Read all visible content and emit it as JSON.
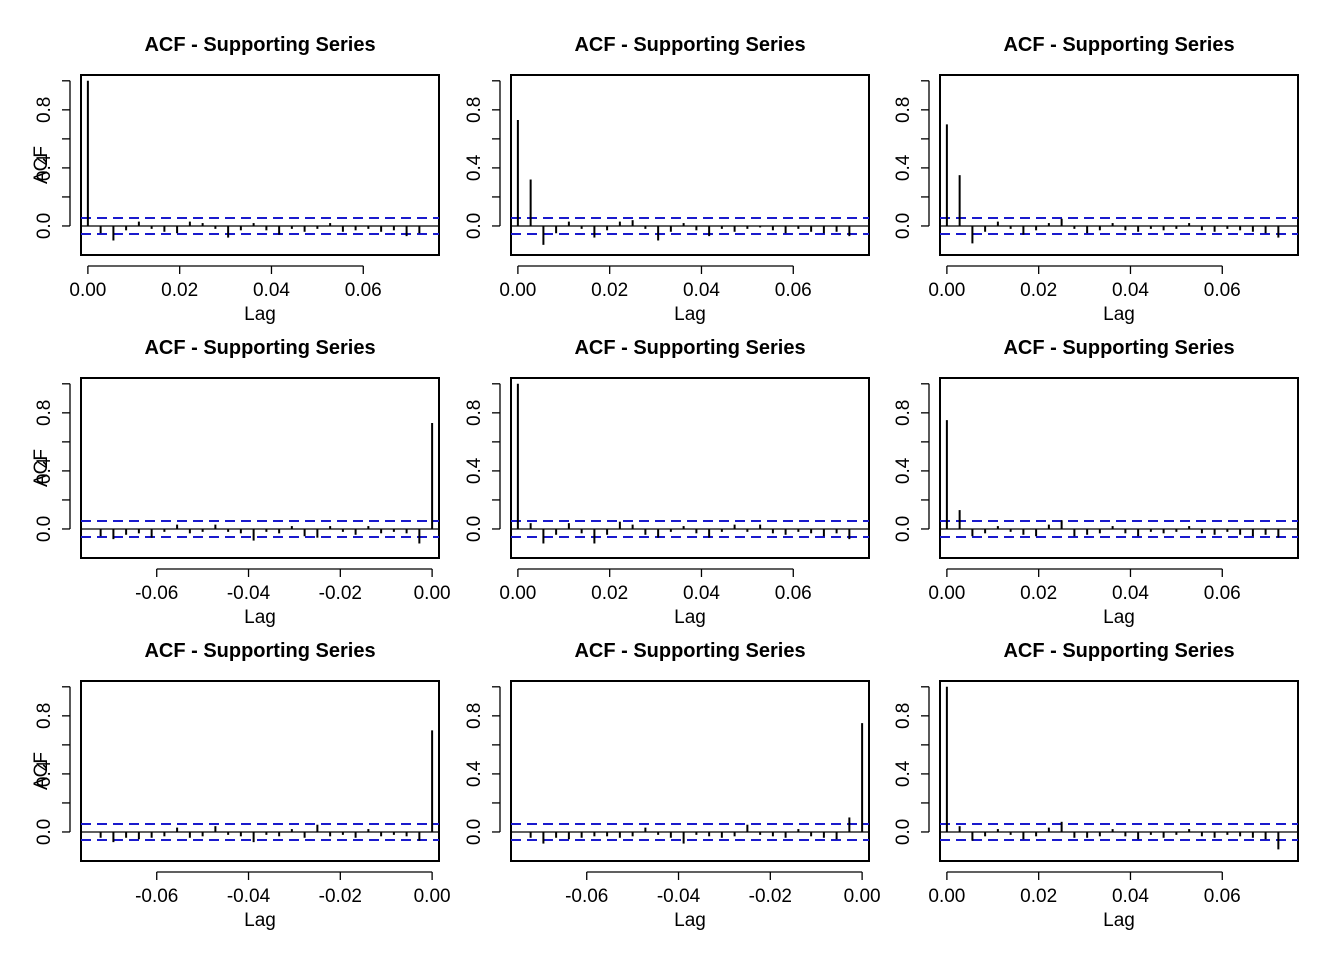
{
  "figure": {
    "background": "#ffffff",
    "ci_color": "#1a1acd"
  },
  "chart_data": [
    {
      "type": "bar",
      "title": "ACF - Supporting Series",
      "xlabel": "Lag",
      "ylabel": "ACF",
      "xlim": [
        -0.0015,
        0.0765
      ],
      "ylim": [
        -0.2,
        1.04
      ],
      "xticks": [
        0.0,
        0.02,
        0.04,
        0.06
      ],
      "xtick_labels": [
        "0.00",
        "0.02",
        "0.04",
        "0.06"
      ],
      "yticks": [
        0.0,
        0.4,
        0.8
      ],
      "ytick_labels": [
        "0.0",
        "0.4",
        "0.8"
      ],
      "ci": [
        0.055,
        -0.055
      ],
      "x": [
        0.0,
        0.00278,
        0.00556,
        0.00833,
        0.01111,
        0.01389,
        0.01667,
        0.01944,
        0.02222,
        0.025,
        0.02778,
        0.03056,
        0.03333,
        0.03611,
        0.03889,
        0.04167,
        0.04444,
        0.04722,
        0.05,
        0.05278,
        0.05556,
        0.05833,
        0.06111,
        0.06389,
        0.06667,
        0.06944,
        0.07222
      ],
      "values": [
        1.0,
        -0.05,
        -0.1,
        -0.03,
        0.03,
        -0.02,
        -0.04,
        -0.05,
        0.03,
        0.02,
        -0.02,
        -0.08,
        -0.03,
        0.02,
        -0.03,
        -0.06,
        -0.02,
        -0.04,
        -0.02,
        0.02,
        -0.04,
        -0.03,
        -0.02,
        -0.04,
        -0.03,
        -0.07,
        -0.05
      ],
      "grid": false
    },
    {
      "type": "bar",
      "title": "ACF - Supporting Series",
      "xlabel": "Lag",
      "ylabel": "",
      "xlim": [
        -0.0015,
        0.0765
      ],
      "ylim": [
        -0.2,
        1.04
      ],
      "xticks": [
        0.0,
        0.02,
        0.04,
        0.06
      ],
      "xtick_labels": [
        "0.00",
        "0.02",
        "0.04",
        "0.06"
      ],
      "yticks": [
        0.0,
        0.4,
        0.8
      ],
      "ytick_labels": [
        "0.0",
        "0.4",
        "0.8"
      ],
      "ci": [
        0.055,
        -0.055
      ],
      "x": [
        0.0,
        0.00278,
        0.00556,
        0.00833,
        0.01111,
        0.01389,
        0.01667,
        0.01944,
        0.02222,
        0.025,
        0.02778,
        0.03056,
        0.03333,
        0.03611,
        0.03889,
        0.04167,
        0.04444,
        0.04722,
        0.05,
        0.05278,
        0.05556,
        0.05833,
        0.06111,
        0.06389,
        0.06667,
        0.06944,
        0.07222
      ],
      "values": [
        0.73,
        0.32,
        -0.13,
        -0.05,
        0.03,
        -0.02,
        -0.08,
        -0.03,
        0.03,
        0.04,
        -0.02,
        -0.1,
        -0.04,
        0.02,
        -0.03,
        -0.07,
        -0.02,
        -0.04,
        -0.02,
        -0.01,
        -0.03,
        -0.05,
        -0.02,
        -0.04,
        -0.05,
        -0.04,
        -0.07
      ],
      "grid": false
    },
    {
      "type": "bar",
      "title": "ACF - Supporting Series",
      "xlabel": "Lag",
      "ylabel": "",
      "xlim": [
        -0.0015,
        0.0765
      ],
      "ylim": [
        -0.2,
        1.04
      ],
      "xticks": [
        0.0,
        0.02,
        0.04,
        0.06
      ],
      "xtick_labels": [
        "0.00",
        "0.02",
        "0.04",
        "0.06"
      ],
      "yticks": [
        0.0,
        0.4,
        0.8
      ],
      "ytick_labels": [
        "0.0",
        "0.4",
        "0.8"
      ],
      "ci": [
        0.055,
        -0.055
      ],
      "x": [
        0.0,
        0.00278,
        0.00556,
        0.00833,
        0.01111,
        0.01389,
        0.01667,
        0.01944,
        0.02222,
        0.025,
        0.02778,
        0.03056,
        0.03333,
        0.03611,
        0.03889,
        0.04167,
        0.04444,
        0.04722,
        0.05,
        0.05278,
        0.05556,
        0.05833,
        0.06111,
        0.06389,
        0.06667,
        0.06944,
        0.07222
      ],
      "values": [
        0.7,
        0.35,
        -0.12,
        -0.04,
        0.03,
        -0.02,
        -0.06,
        -0.03,
        0.02,
        0.05,
        -0.02,
        -0.05,
        -0.03,
        0.02,
        -0.03,
        -0.04,
        -0.02,
        -0.03,
        -0.02,
        0.02,
        -0.03,
        -0.04,
        -0.02,
        -0.03,
        -0.04,
        -0.05,
        -0.08
      ],
      "grid": false
    },
    {
      "type": "bar",
      "title": "ACF - Supporting Series",
      "xlabel": "Lag",
      "ylabel": "ACF",
      "xlim": [
        -0.0765,
        0.0015
      ],
      "ylim": [
        -0.2,
        1.04
      ],
      "xticks": [
        -0.06,
        -0.04,
        -0.02,
        0.0
      ],
      "xtick_labels": [
        "-0.06",
        "-0.04",
        "-0.02",
        "0.00"
      ],
      "yticks": [
        0.0,
        0.4,
        0.8
      ],
      "ytick_labels": [
        "0.0",
        "0.4",
        "0.8"
      ],
      "ci": [
        0.055,
        -0.055
      ],
      "x": [
        -0.07222,
        -0.06944,
        -0.06667,
        -0.06389,
        -0.06111,
        -0.05833,
        -0.05556,
        -0.05278,
        -0.05,
        -0.04722,
        -0.04444,
        -0.04167,
        -0.03889,
        -0.03611,
        -0.03333,
        -0.03056,
        -0.02778,
        -0.025,
        -0.02222,
        -0.01944,
        -0.01667,
        -0.01389,
        -0.01111,
        -0.00833,
        -0.00556,
        -0.00278,
        0.0
      ],
      "values": [
        -0.05,
        -0.07,
        -0.04,
        -0.03,
        -0.06,
        -0.02,
        0.03,
        -0.03,
        -0.02,
        0.03,
        -0.02,
        -0.03,
        -0.08,
        -0.02,
        -0.03,
        0.02,
        -0.05,
        -0.06,
        0.02,
        -0.02,
        -0.04,
        0.02,
        -0.03,
        -0.02,
        -0.03,
        -0.1,
        0.73
      ],
      "grid": false
    },
    {
      "type": "bar",
      "title": "ACF - Supporting Series",
      "xlabel": "Lag",
      "ylabel": "",
      "xlim": [
        -0.0015,
        0.0765
      ],
      "ylim": [
        -0.2,
        1.04
      ],
      "xticks": [
        0.0,
        0.02,
        0.04,
        0.06
      ],
      "xtick_labels": [
        "0.00",
        "0.02",
        "0.04",
        "0.06"
      ],
      "yticks": [
        0.0,
        0.4,
        0.8
      ],
      "ytick_labels": [
        "0.0",
        "0.4",
        "0.8"
      ],
      "ci": [
        0.055,
        -0.055
      ],
      "x": [
        0.0,
        0.00278,
        0.00556,
        0.00833,
        0.01111,
        0.01389,
        0.01667,
        0.01944,
        0.02222,
        0.025,
        0.02778,
        0.03056,
        0.03333,
        0.03611,
        0.03889,
        0.04167,
        0.04444,
        0.04722,
        0.05,
        0.05278,
        0.05556,
        0.05833,
        0.06111,
        0.06389,
        0.06667,
        0.06944,
        0.07222
      ],
      "values": [
        1.0,
        0.04,
        -0.1,
        -0.04,
        0.04,
        -0.03,
        -0.1,
        -0.04,
        0.05,
        0.03,
        -0.04,
        -0.06,
        -0.02,
        0.02,
        -0.03,
        -0.06,
        -0.02,
        0.03,
        -0.02,
        0.03,
        -0.03,
        -0.04,
        -0.02,
        -0.03,
        -0.05,
        -0.03,
        -0.07
      ],
      "grid": false
    },
    {
      "type": "bar",
      "title": "ACF - Supporting Series",
      "xlabel": "Lag",
      "ylabel": "",
      "xlim": [
        -0.0015,
        0.0765
      ],
      "ylim": [
        -0.2,
        1.04
      ],
      "xticks": [
        0.0,
        0.02,
        0.04,
        0.06
      ],
      "xtick_labels": [
        "0.00",
        "0.02",
        "0.04",
        "0.06"
      ],
      "yticks": [
        0.0,
        0.4,
        0.8
      ],
      "ytick_labels": [
        "0.0",
        "0.4",
        "0.8"
      ],
      "ci": [
        0.055,
        -0.055
      ],
      "x": [
        0.0,
        0.00278,
        0.00556,
        0.00833,
        0.01111,
        0.01389,
        0.01667,
        0.01944,
        0.02222,
        0.025,
        0.02778,
        0.03056,
        0.03333,
        0.03611,
        0.03889,
        0.04167,
        0.04444,
        0.04722,
        0.05,
        0.05278,
        0.05556,
        0.05833,
        0.06111,
        0.06389,
        0.06667,
        0.06944,
        0.07222
      ],
      "values": [
        0.75,
        0.13,
        -0.05,
        -0.03,
        0.02,
        -0.02,
        -0.04,
        -0.05,
        0.03,
        0.06,
        -0.05,
        -0.04,
        -0.03,
        0.02,
        -0.03,
        -0.05,
        -0.02,
        -0.03,
        -0.02,
        0.02,
        -0.03,
        -0.04,
        -0.02,
        -0.04,
        -0.05,
        -0.04,
        -0.06
      ],
      "grid": false
    },
    {
      "type": "bar",
      "title": "ACF - Supporting Series",
      "xlabel": "Lag",
      "ylabel": "ACF",
      "xlim": [
        -0.0765,
        0.0015
      ],
      "ylim": [
        -0.2,
        1.04
      ],
      "xticks": [
        -0.06,
        -0.04,
        -0.02,
        0.0
      ],
      "xtick_labels": [
        "-0.06",
        "-0.04",
        "-0.02",
        "0.00"
      ],
      "yticks": [
        0.0,
        0.4,
        0.8
      ],
      "ytick_labels": [
        "0.0",
        "0.4",
        "0.8"
      ],
      "ci": [
        0.055,
        -0.055
      ],
      "x": [
        -0.07222,
        -0.06944,
        -0.06667,
        -0.06389,
        -0.06111,
        -0.05833,
        -0.05556,
        -0.05278,
        -0.05,
        -0.04722,
        -0.04444,
        -0.04167,
        -0.03889,
        -0.03611,
        -0.03333,
        -0.03056,
        -0.02778,
        -0.025,
        -0.02222,
        -0.01944,
        -0.01667,
        -0.01389,
        -0.01111,
        -0.00833,
        -0.00556,
        -0.00278,
        0.0
      ],
      "values": [
        -0.04,
        -0.07,
        -0.04,
        -0.05,
        -0.04,
        -0.03,
        0.03,
        -0.04,
        -0.03,
        0.04,
        -0.02,
        -0.03,
        -0.07,
        -0.02,
        -0.03,
        0.02,
        -0.04,
        0.05,
        -0.03,
        -0.02,
        -0.04,
        0.02,
        -0.03,
        -0.02,
        -0.03,
        -0.06,
        0.7
      ],
      "grid": false
    },
    {
      "type": "bar",
      "title": "ACF - Supporting Series",
      "xlabel": "Lag",
      "ylabel": "",
      "xlim": [
        -0.0765,
        0.0015
      ],
      "ylim": [
        -0.2,
        1.04
      ],
      "xticks": [
        -0.06,
        -0.04,
        -0.02,
        0.0
      ],
      "xtick_labels": [
        "-0.06",
        "-0.04",
        "-0.02",
        "0.00"
      ],
      "yticks": [
        0.0,
        0.4,
        0.8
      ],
      "ytick_labels": [
        "0.0",
        "0.4",
        "0.8"
      ],
      "ci": [
        0.055,
        -0.055
      ],
      "x": [
        -0.07222,
        -0.06944,
        -0.06667,
        -0.06389,
        -0.06111,
        -0.05833,
        -0.05556,
        -0.05278,
        -0.05,
        -0.04722,
        -0.04444,
        -0.04167,
        -0.03889,
        -0.03611,
        -0.03333,
        -0.03056,
        -0.02778,
        -0.025,
        -0.02222,
        -0.01944,
        -0.01667,
        -0.01389,
        -0.01111,
        -0.00833,
        -0.00556,
        -0.00278,
        0.0
      ],
      "values": [
        -0.04,
        -0.08,
        -0.04,
        -0.05,
        -0.04,
        -0.03,
        -0.03,
        -0.04,
        -0.03,
        0.03,
        -0.02,
        -0.04,
        -0.08,
        -0.02,
        -0.03,
        -0.04,
        -0.03,
        0.05,
        -0.02,
        -0.03,
        -0.04,
        0.02,
        -0.03,
        -0.04,
        -0.05,
        0.1,
        0.75
      ],
      "grid": false
    },
    {
      "type": "bar",
      "title": "ACF - Supporting Series",
      "xlabel": "Lag",
      "ylabel": "",
      "xlim": [
        -0.0015,
        0.0765
      ],
      "ylim": [
        -0.2,
        1.04
      ],
      "xticks": [
        0.0,
        0.02,
        0.04,
        0.06
      ],
      "xtick_labels": [
        "0.00",
        "0.02",
        "0.04",
        "0.06"
      ],
      "yticks": [
        0.0,
        0.4,
        0.8
      ],
      "ytick_labels": [
        "0.0",
        "0.4",
        "0.8"
      ],
      "ci": [
        0.055,
        -0.055
      ],
      "x": [
        0.0,
        0.00278,
        0.00556,
        0.00833,
        0.01111,
        0.01389,
        0.01667,
        0.01944,
        0.02222,
        0.025,
        0.02778,
        0.03056,
        0.03333,
        0.03611,
        0.03889,
        0.04167,
        0.04444,
        0.04722,
        0.05,
        0.05278,
        0.05556,
        0.05833,
        0.06111,
        0.06389,
        0.06667,
        0.06944,
        0.07222
      ],
      "values": [
        1.0,
        0.04,
        -0.06,
        -0.03,
        0.02,
        -0.02,
        -0.05,
        -0.03,
        0.03,
        0.07,
        -0.04,
        -0.04,
        -0.03,
        0.02,
        -0.03,
        -0.05,
        -0.02,
        -0.04,
        -0.02,
        0.02,
        -0.03,
        -0.04,
        -0.02,
        -0.03,
        -0.04,
        -0.05,
        -0.12
      ],
      "grid": false
    }
  ]
}
